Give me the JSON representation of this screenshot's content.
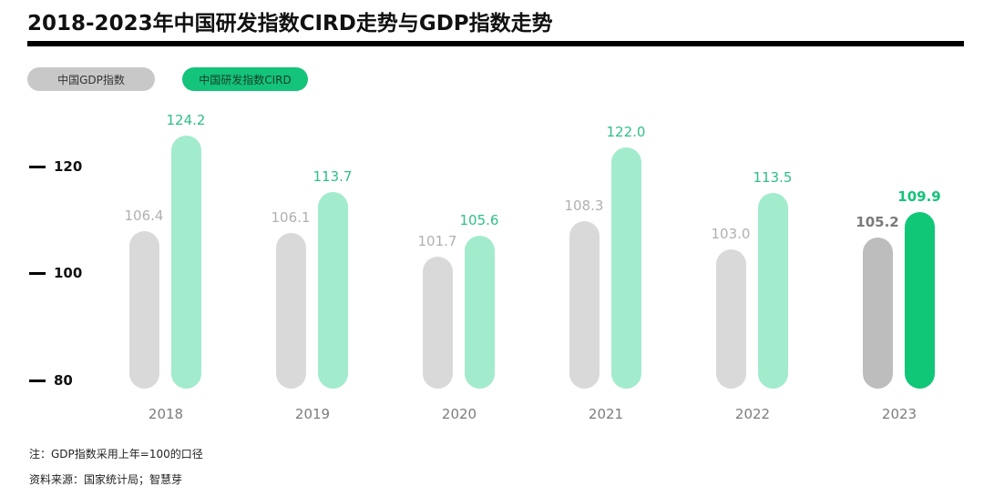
{
  "header": {
    "title": "2018-2023年中国研发指数CIRD走势与GDP指数走势"
  },
  "legend": {
    "gdp_label": "中国GDP指数",
    "cird_label": "中国研发指数CIRD"
  },
  "colors": {
    "gdp": "#d9d9d9",
    "gdp_highlight": "#bdbdbd",
    "cird": "#a2ebcd",
    "cird_highlight": "#0fc777",
    "cird_label": "#2fbf88",
    "legend_gdp": "#c8c8c8",
    "legend_cird": "#13c47a"
  },
  "yaxis": {
    "ticks": [
      "120",
      "100",
      "80"
    ]
  },
  "footer": {
    "note": "注：GDP指数采用上年=100的口径",
    "source": "资料来源：国家统计局；智慧芽"
  },
  "chart_data": {
    "type": "bar",
    "title": "2018-2023年中国研发指数CIRD走势与GDP指数走势",
    "xlabel": "",
    "ylabel": "",
    "ylim": [
      80,
      126
    ],
    "yticks": [
      80,
      100,
      120
    ],
    "grid": false,
    "legend_position": "top-left",
    "categories": [
      "2018",
      "2019",
      "2020",
      "2021",
      "2022",
      "2023"
    ],
    "series": [
      {
        "name": "中国GDP指数",
        "values": [
          106.4,
          106.1,
          101.7,
          108.3,
          103.0,
          105.2
        ]
      },
      {
        "name": "中国研发指数CIRD",
        "values": [
          124.2,
          113.7,
          105.6,
          122.0,
          113.5,
          109.9
        ]
      }
    ],
    "labels": {
      "gdp": [
        "106.4",
        "106.1",
        "101.7",
        "108.3",
        "103.0",
        "105.2"
      ],
      "cird": [
        "124.2",
        "113.7",
        "105.6",
        "122.0",
        "113.5",
        "109.9"
      ]
    },
    "highlight_category": "2023",
    "annotations": [
      "注：GDP指数采用上年=100的口径",
      "资料来源：国家统计局；智慧芽"
    ]
  }
}
